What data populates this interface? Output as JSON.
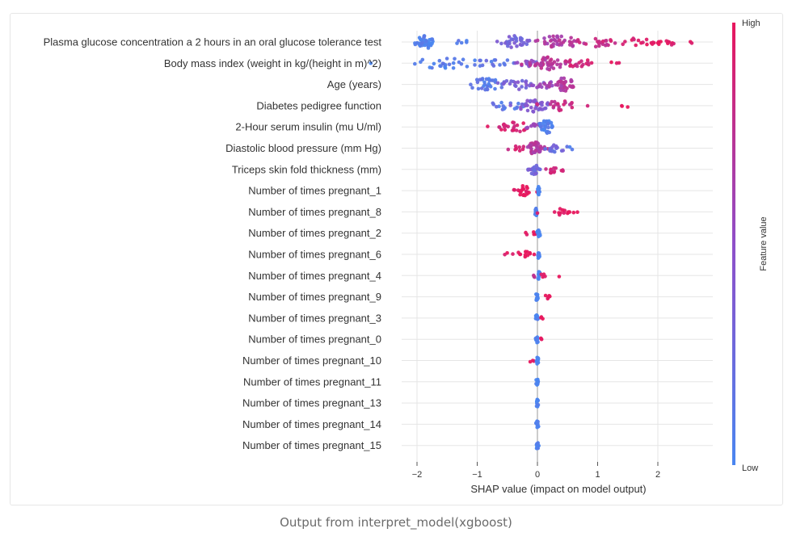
{
  "caption": "Output from interpret_model(xgboost)",
  "colors": {
    "low": "#4a86f0",
    "high": "#e8175d",
    "grid": "#e5e5e5",
    "zero_line": "#9a9a9a"
  },
  "chart_data": {
    "type": "scatter",
    "subtype": "shap_beeswarm",
    "xlabel": "SHAP value (impact on model output)",
    "xlim": [
      -2.2,
      2.9
    ],
    "xticks": [
      -2,
      -1,
      0,
      1,
      2
    ],
    "xtick_labels": [
      "−2",
      "−1",
      "0",
      "1",
      "2"
    ],
    "colorbar": {
      "label": "Feature value",
      "high_label": "High",
      "low_label": "Low"
    },
    "features": [
      {
        "name": "Plasma glucose concentration a 2 hours in an oral glucose tolerance test",
        "clusters": [
          {
            "c": -1.85,
            "s": 0.09,
            "n": 38,
            "v": 0.05
          },
          {
            "c": -1.25,
            "s": 0.05,
            "n": 5,
            "v": 0.1
          },
          {
            "c": -0.38,
            "s": 0.14,
            "n": 32,
            "v": 0.3
          },
          {
            "c": 0.35,
            "s": 0.2,
            "n": 36,
            "v": 0.68
          },
          {
            "c": 0.95,
            "s": 0.18,
            "n": 22,
            "v": 0.82
          },
          {
            "c": 1.65,
            "s": 0.22,
            "n": 14,
            "v": 0.92
          },
          {
            "c": 2.2,
            "s": 0.2,
            "n": 12,
            "v": 0.97
          },
          {
            "c": 2.65,
            "s": 0.05,
            "n": 2,
            "v": 1.0
          }
        ]
      },
      {
        "name": "Body mass index (weight in kg/(height in m)^2)",
        "clusters": [
          {
            "c": -1.55,
            "s": 0.35,
            "n": 28,
            "v": 0.08
          },
          {
            "c": -0.7,
            "s": 0.25,
            "n": 14,
            "v": 0.2
          },
          {
            "c": -0.15,
            "s": 0.12,
            "n": 14,
            "v": 0.5
          },
          {
            "c": 0.2,
            "s": 0.16,
            "n": 44,
            "v": 0.72
          },
          {
            "c": 0.7,
            "s": 0.15,
            "n": 16,
            "v": 0.88
          },
          {
            "c": 1.35,
            "s": 0.07,
            "n": 3,
            "v": 0.95
          }
        ]
      },
      {
        "name": "Age (years)",
        "clusters": [
          {
            "c": -0.85,
            "s": 0.16,
            "n": 32,
            "v": 0.12
          },
          {
            "c": -0.3,
            "s": 0.18,
            "n": 22,
            "v": 0.35
          },
          {
            "c": 0.1,
            "s": 0.12,
            "n": 14,
            "v": 0.58
          },
          {
            "c": 0.45,
            "s": 0.12,
            "n": 32,
            "v": 0.7
          }
        ]
      },
      {
        "name": "Diabetes pedigree function",
        "clusters": [
          {
            "c": -0.55,
            "s": 0.2,
            "n": 16,
            "v": 0.15
          },
          {
            "c": -0.05,
            "s": 0.15,
            "n": 34,
            "v": 0.4
          },
          {
            "c": 0.4,
            "s": 0.18,
            "n": 22,
            "v": 0.8
          },
          {
            "c": 1.45,
            "s": 0.05,
            "n": 3,
            "v": 0.97
          }
        ]
      },
      {
        "name": "2-Hour serum insulin (mu U/ml)",
        "clusters": [
          {
            "c": -0.4,
            "s": 0.15,
            "n": 24,
            "v": 0.9
          },
          {
            "c": -0.05,
            "s": 0.06,
            "n": 10,
            "v": 0.55
          },
          {
            "c": 0.15,
            "s": 0.07,
            "n": 34,
            "v": 0.05
          }
        ]
      },
      {
        "name": "Diastolic blood pressure (mm Hg)",
        "clusters": [
          {
            "c": -0.3,
            "s": 0.08,
            "n": 8,
            "v": 0.85
          },
          {
            "c": -0.05,
            "s": 0.07,
            "n": 40,
            "v": 0.7
          },
          {
            "c": 0.25,
            "s": 0.12,
            "n": 16,
            "v": 0.25
          },
          {
            "c": 0.55,
            "s": 0.03,
            "n": 2,
            "v": 0.1
          }
        ]
      },
      {
        "name": "Triceps skin fold thickness (mm)",
        "clusters": [
          {
            "c": -0.05,
            "s": 0.05,
            "n": 22,
            "v": 0.3
          },
          {
            "c": 0.25,
            "s": 0.1,
            "n": 14,
            "v": 0.88
          },
          {
            "c": 0.42,
            "s": 0.02,
            "n": 1,
            "v": 0.95
          }
        ]
      },
      {
        "name": "Number of times pregnant_1",
        "clusters": [
          {
            "c": -0.22,
            "s": 0.1,
            "n": 22,
            "v": 1.0
          },
          {
            "c": 0.02,
            "s": 0.01,
            "n": 16,
            "v": 0.0
          }
        ]
      },
      {
        "name": "Number of times pregnant_8",
        "clusters": [
          {
            "c": -0.02,
            "s": 0.01,
            "n": 14,
            "v": 0.0
          },
          {
            "c": 0.35,
            "s": 0.12,
            "n": 12,
            "v": 1.0
          },
          {
            "c": 0.6,
            "s": 0.04,
            "n": 3,
            "v": 1.0
          }
        ]
      },
      {
        "name": "Number of times pregnant_2",
        "clusters": [
          {
            "c": -0.2,
            "s": 0.02,
            "n": 2,
            "v": 1.0
          },
          {
            "c": -0.05,
            "s": 0.02,
            "n": 4,
            "v": 1.0
          },
          {
            "c": 0.02,
            "s": 0.01,
            "n": 16,
            "v": 0.0
          }
        ]
      },
      {
        "name": "Number of times pregnant_6",
        "clusters": [
          {
            "c": -0.5,
            "s": 0.03,
            "n": 2,
            "v": 1.0
          },
          {
            "c": -0.2,
            "s": 0.08,
            "n": 12,
            "v": 1.0
          },
          {
            "c": 0.02,
            "s": 0.01,
            "n": 16,
            "v": 0.0
          }
        ]
      },
      {
        "name": "Number of times pregnant_4",
        "clusters": [
          {
            "c": -0.05,
            "s": 0.02,
            "n": 3,
            "v": 0.7
          },
          {
            "c": 0.02,
            "s": 0.01,
            "n": 16,
            "v": 0.0
          },
          {
            "c": 0.08,
            "s": 0.02,
            "n": 4,
            "v": 1.0
          },
          {
            "c": 0.35,
            "s": 0.01,
            "n": 1,
            "v": 1.0
          }
        ]
      },
      {
        "name": "Number of times pregnant_9",
        "clusters": [
          {
            "c": -0.01,
            "s": 0.01,
            "n": 14,
            "v": 0.0
          },
          {
            "c": 0.15,
            "s": 0.03,
            "n": 5,
            "v": 1.0
          }
        ]
      },
      {
        "name": "Number of times pregnant_3",
        "clusters": [
          {
            "c": -0.01,
            "s": 0.01,
            "n": 14,
            "v": 0.0
          },
          {
            "c": 0.07,
            "s": 0.02,
            "n": 3,
            "v": 1.0
          }
        ]
      },
      {
        "name": "Number of times pregnant_0",
        "clusters": [
          {
            "c": -0.01,
            "s": 0.01,
            "n": 14,
            "v": 0.0
          },
          {
            "c": 0.05,
            "s": 0.01,
            "n": 3,
            "v": 1.0
          }
        ]
      },
      {
        "name": "Number of times pregnant_10",
        "clusters": [
          {
            "c": -0.08,
            "s": 0.02,
            "n": 3,
            "v": 1.0
          },
          {
            "c": 0.0,
            "s": 0.01,
            "n": 14,
            "v": 0.0
          }
        ]
      },
      {
        "name": "Number of times pregnant_11",
        "clusters": [
          {
            "c": 0.0,
            "s": 0.01,
            "n": 14,
            "v": 0.0
          }
        ]
      },
      {
        "name": "Number of times pregnant_13",
        "clusters": [
          {
            "c": 0.0,
            "s": 0.01,
            "n": 14,
            "v": 0.0
          }
        ]
      },
      {
        "name": "Number of times pregnant_14",
        "clusters": [
          {
            "c": 0.0,
            "s": 0.01,
            "n": 14,
            "v": 0.0
          }
        ]
      },
      {
        "name": "Number of times pregnant_15",
        "clusters": [
          {
            "c": 0.0,
            "s": 0.01,
            "n": 14,
            "v": 0.0
          }
        ]
      }
    ]
  }
}
